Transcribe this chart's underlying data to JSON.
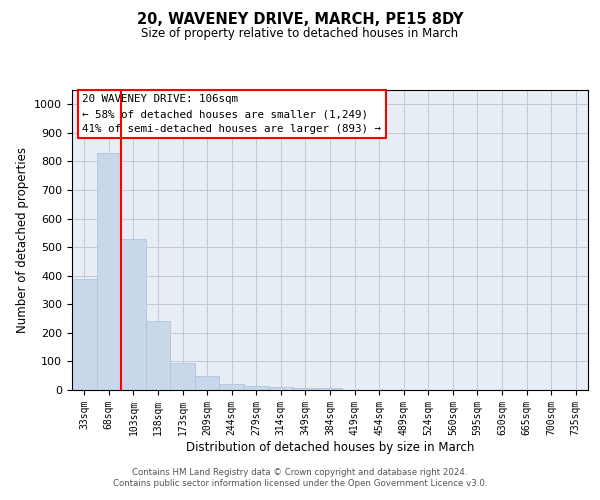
{
  "title1": "20, WAVENEY DRIVE, MARCH, PE15 8DY",
  "title2": "Size of property relative to detached houses in March",
  "xlabel": "Distribution of detached houses by size in March",
  "ylabel": "Number of detached properties",
  "bar_color": "#c8d8ea",
  "bar_edge_color": "#a8c0d8",
  "categories": [
    "33sqm",
    "68sqm",
    "103sqm",
    "138sqm",
    "173sqm",
    "209sqm",
    "244sqm",
    "279sqm",
    "314sqm",
    "349sqm",
    "384sqm",
    "419sqm",
    "454sqm",
    "489sqm",
    "524sqm",
    "560sqm",
    "595sqm",
    "630sqm",
    "665sqm",
    "700sqm",
    "735sqm"
  ],
  "values": [
    390,
    830,
    530,
    240,
    93,
    50,
    20,
    15,
    12,
    8,
    7,
    0,
    0,
    0,
    0,
    0,
    0,
    0,
    0,
    0,
    0
  ],
  "ylim": [
    0,
    1050
  ],
  "yticks": [
    0,
    100,
    200,
    300,
    400,
    500,
    600,
    700,
    800,
    900,
    1000
  ],
  "red_line_x": 1.5,
  "annotation_text": "20 WAVENEY DRIVE: 106sqm\n← 58% of detached houses are smaller (1,249)\n41% of semi-detached houses are larger (893) →",
  "annotation_box_color": "white",
  "annotation_box_edge_color": "red",
  "grid_color": "#c0cad8",
  "background_color": "#e8eef5",
  "footer_text": "Contains HM Land Registry data © Crown copyright and database right 2024.\nContains public sector information licensed under the Open Government Licence v3.0."
}
